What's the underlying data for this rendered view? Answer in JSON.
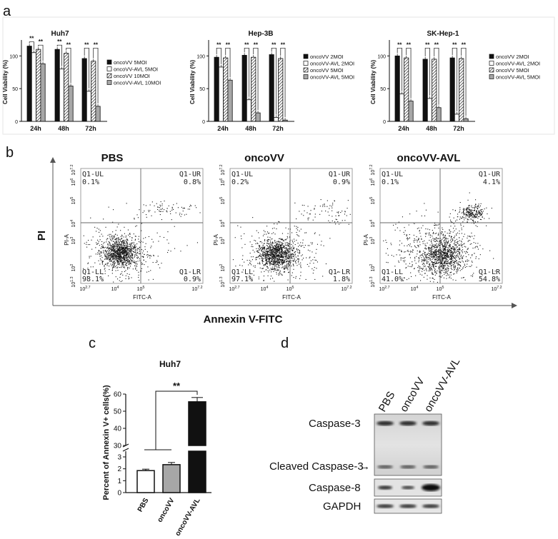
{
  "panels": {
    "a": "a",
    "b": "b",
    "c": "c",
    "d": "d"
  },
  "panel_a": {
    "ylabel": "Cell Viability (%)",
    "categories": [
      "24h",
      "48h",
      "72h"
    ],
    "yticks": [
      "0",
      "50",
      "100"
    ],
    "sig": "**",
    "charts": [
      {
        "title": "Huh7",
        "legend": [
          "oncoVV 5MOI",
          "oncoVV-AVL 5MOI",
          "oncoVV 10MOI",
          "oncoVV-AVL 10MOI"
        ]
      },
      {
        "title": "Hep-3B",
        "legend": [
          "oncoVV 2MOI",
          "oncoVV-AVL 2MOI",
          "oncoVV 5MOI",
          "oncoVV-AVL 5MOI"
        ]
      },
      {
        "title": "SK-Hep-1",
        "legend": [
          "oncoVV 2MOI",
          "oncoVV-AVL 2MOI",
          "oncoVV 5MOI",
          "oncoVV-AVL 5MOI"
        ]
      }
    ]
  },
  "panel_b": {
    "ylabel": "PI",
    "xlabel": "Annexin V-FITC",
    "plot_xlabel": "FITC-A",
    "plot_ylabel": "PI-A",
    "xticks": [
      "10^2.7",
      "10^4",
      "10^5",
      "10^7.2"
    ],
    "yticks": [
      "10^1.3",
      "10^2",
      "10^3",
      "10^4",
      "10^5",
      "10^6",
      "10^7.2"
    ],
    "quadrant_names": [
      "Q1-UL",
      "Q1-UR",
      "Q1-LL",
      "Q1-LR"
    ],
    "plots": [
      {
        "title": "PBS",
        "ul": "0.1%",
        "ur": "0.8%",
        "ll": "98.1%",
        "lr": "0.9%"
      },
      {
        "title": "oncoVV",
        "ul": "0.2%",
        "ur": "0.9%",
        "ll": "97.1%",
        "lr": "1.8%"
      },
      {
        "title": "oncoVV-AVL",
        "ul": "0.1%",
        "ur": "4.1%",
        "ll": "41.0%",
        "lr": "54.8%"
      }
    ]
  },
  "panel_c": {
    "title": "Huh7",
    "ylabel": "Percent of Annexin V+ cells(%)",
    "sig": "**",
    "yticks_low": [
      "0",
      "1",
      "2",
      "3"
    ],
    "yticks_high": [
      "30",
      "40",
      "50",
      "60"
    ]
  },
  "panel_d": {
    "lanes": [
      "PBS",
      "oncoVV",
      "oncoVV-AVL"
    ],
    "bands": [
      "Caspase-3",
      "Cleaved Caspase-3",
      "Caspase-8",
      "GAPDH"
    ],
    "arrow": "→"
  },
  "colors": {
    "black": "#111111",
    "white": "#ffffff",
    "grey": "#a7a7a7",
    "dot": "#111111"
  },
  "chart_data": [
    {
      "type": "bar",
      "title": "Huh7",
      "ylabel": "Cell Viability (%)",
      "ylim": [
        0,
        120
      ],
      "categories": [
        "24h",
        "48h",
        "72h"
      ],
      "series": [
        {
          "name": "oncoVV 5MOI",
          "values": [
            115,
            110,
            96
          ],
          "fill": "solid"
        },
        {
          "name": "oncoVV-AVL 5MOI",
          "values": [
            105,
            80,
            46
          ],
          "fill": "open"
        },
        {
          "name": "oncoVV 10MOI",
          "values": [
            110,
            104,
            92
          ],
          "fill": "hatch"
        },
        {
          "name": "oncoVV-AVL 10MOI",
          "values": [
            88,
            54,
            23
          ],
          "fill": "grey"
        }
      ]
    },
    {
      "type": "bar",
      "title": "Hep-3B",
      "ylabel": "Cell Viability (%)",
      "ylim": [
        0,
        120
      ],
      "categories": [
        "24h",
        "48h",
        "72h"
      ],
      "series": [
        {
          "name": "oncoVV 2MOI",
          "values": [
            98,
            101,
            102
          ],
          "fill": "solid"
        },
        {
          "name": "oncoVV-AVL 2MOI",
          "values": [
            83,
            33,
            6
          ],
          "fill": "open"
        },
        {
          "name": "oncoVV 5MOI",
          "values": [
            97,
            98,
            96
          ],
          "fill": "hatch"
        },
        {
          "name": "oncoVV-AVL 5MOI",
          "values": [
            63,
            13,
            2
          ],
          "fill": "grey"
        }
      ]
    },
    {
      "type": "bar",
      "title": "SK-Hep-1",
      "ylabel": "Cell Viability (%)",
      "ylim": [
        0,
        120
      ],
      "categories": [
        "24h",
        "48h",
        "72h"
      ],
      "series": [
        {
          "name": "oncoVV 2MOI",
          "values": [
            100,
            95,
            97
          ],
          "fill": "solid"
        },
        {
          "name": "oncoVV-AVL 2MOI",
          "values": [
            42,
            35,
            11
          ],
          "fill": "open"
        },
        {
          "name": "oncoVV 5MOI",
          "values": [
            97,
            95,
            96
          ],
          "fill": "hatch"
        },
        {
          "name": "oncoVV-AVL 5MOI",
          "values": [
            31,
            21,
            4
          ],
          "fill": "grey"
        }
      ]
    },
    {
      "type": "bar",
      "title": "Huh7",
      "ylabel": "Percent of Annexin V+ cells(%)",
      "categories": [
        "PBS",
        "oncoVV",
        "oncoVV-AVL"
      ],
      "values": [
        1.85,
        2.35,
        55.5
      ],
      "errors": [
        0.12,
        0.18,
        2.5
      ],
      "fills": [
        "open",
        "grey",
        "solid"
      ],
      "axis_break": [
        3,
        30
      ],
      "ylim": [
        0,
        60
      ]
    }
  ]
}
